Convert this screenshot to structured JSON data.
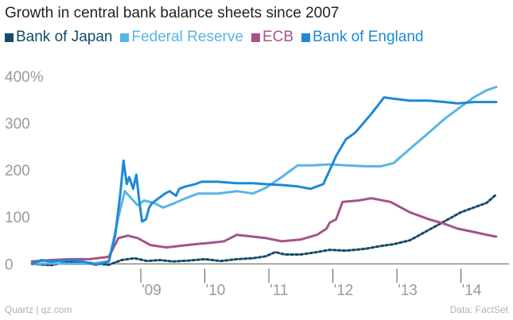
{
  "chart_data": {
    "type": "line",
    "title": "Growth in central bank balance sheets since 2007",
    "xlabel": "",
    "ylabel": "",
    "ylim": [
      -8,
      400
    ],
    "xlim": [
      2007.0,
      2014.75
    ],
    "y_ticks": [
      {
        "value": 400,
        "label": "400%"
      },
      {
        "value": 300,
        "label": "300"
      },
      {
        "value": 200,
        "label": "200"
      },
      {
        "value": 100,
        "label": "100"
      },
      {
        "value": 0,
        "label": "0"
      }
    ],
    "x_ticks": [
      {
        "value": 2009,
        "label": "'09"
      },
      {
        "value": 2010,
        "label": "'10"
      },
      {
        "value": 2011,
        "label": "'11"
      },
      {
        "value": 2012,
        "label": "'12"
      },
      {
        "value": 2013,
        "label": "'13"
      },
      {
        "value": 2014,
        "label": "'14"
      }
    ],
    "legend_position": "top",
    "grid": "baseline only",
    "series": [
      {
        "name": "Bank of Japan",
        "color": "#174a6a",
        "dashed": true,
        "points": [
          [
            2007.3,
            0
          ],
          [
            2007.6,
            -3
          ],
          [
            2007.9,
            5
          ],
          [
            2008.2,
            2
          ],
          [
            2008.5,
            -2
          ],
          [
            2008.7,
            8
          ],
          [
            2008.9,
            12
          ],
          [
            2009.1,
            6
          ],
          [
            2009.3,
            8
          ],
          [
            2009.5,
            5
          ],
          [
            2009.75,
            7
          ],
          [
            2010.0,
            10
          ],
          [
            2010.25,
            6
          ],
          [
            2010.5,
            10
          ],
          [
            2010.75,
            12
          ],
          [
            2010.95,
            16
          ],
          [
            2011.1,
            25
          ],
          [
            2011.25,
            20
          ],
          [
            2011.5,
            20
          ],
          [
            2011.75,
            25
          ],
          [
            2011.95,
            30
          ],
          [
            2012.2,
            28
          ],
          [
            2012.5,
            32
          ],
          [
            2012.75,
            38
          ],
          [
            2012.95,
            42
          ],
          [
            2013.2,
            50
          ],
          [
            2013.4,
            65
          ],
          [
            2013.6,
            80
          ],
          [
            2013.8,
            95
          ],
          [
            2014.0,
            110
          ],
          [
            2014.2,
            120
          ],
          [
            2014.4,
            130
          ],
          [
            2014.55,
            148
          ]
        ]
      },
      {
        "name": "Federal Reserve",
        "color": "#5ab4e5",
        "dashed": false,
        "points": [
          [
            2007.3,
            0
          ],
          [
            2007.6,
            1
          ],
          [
            2007.9,
            0
          ],
          [
            2008.2,
            0
          ],
          [
            2008.5,
            5
          ],
          [
            2008.65,
            100
          ],
          [
            2008.75,
            155
          ],
          [
            2008.85,
            140
          ],
          [
            2008.95,
            125
          ],
          [
            2009.05,
            135
          ],
          [
            2009.2,
            130
          ],
          [
            2009.35,
            120
          ],
          [
            2009.5,
            128
          ],
          [
            2009.7,
            140
          ],
          [
            2009.9,
            150
          ],
          [
            2010.2,
            150
          ],
          [
            2010.5,
            155
          ],
          [
            2010.75,
            150
          ],
          [
            2010.95,
            162
          ],
          [
            2011.2,
            185
          ],
          [
            2011.45,
            210
          ],
          [
            2011.7,
            210
          ],
          [
            2011.95,
            212
          ],
          [
            2012.2,
            210
          ],
          [
            2012.5,
            208
          ],
          [
            2012.75,
            208
          ],
          [
            2012.95,
            215
          ],
          [
            2013.2,
            245
          ],
          [
            2013.5,
            280
          ],
          [
            2013.75,
            310
          ],
          [
            2013.95,
            330
          ],
          [
            2014.2,
            355
          ],
          [
            2014.4,
            370
          ],
          [
            2014.55,
            377
          ]
        ]
      },
      {
        "name": "ECB",
        "color": "#a6538a",
        "dashed": false,
        "points": [
          [
            2007.3,
            5
          ],
          [
            2007.6,
            8
          ],
          [
            2007.9,
            10
          ],
          [
            2008.2,
            10
          ],
          [
            2008.5,
            15
          ],
          [
            2008.65,
            55
          ],
          [
            2008.8,
            60
          ],
          [
            2008.95,
            55
          ],
          [
            2009.15,
            40
          ],
          [
            2009.4,
            35
          ],
          [
            2009.6,
            38
          ],
          [
            2009.85,
            42
          ],
          [
            2010.1,
            45
          ],
          [
            2010.3,
            48
          ],
          [
            2010.5,
            62
          ],
          [
            2010.75,
            58
          ],
          [
            2010.95,
            55
          ],
          [
            2011.2,
            48
          ],
          [
            2011.5,
            52
          ],
          [
            2011.75,
            62
          ],
          [
            2011.9,
            75
          ],
          [
            2011.95,
            88
          ],
          [
            2012.05,
            95
          ],
          [
            2012.15,
            132
          ],
          [
            2012.4,
            135
          ],
          [
            2012.6,
            140
          ],
          [
            2012.9,
            132
          ],
          [
            2013.2,
            110
          ],
          [
            2013.5,
            95
          ],
          [
            2013.75,
            85
          ],
          [
            2013.95,
            75
          ],
          [
            2014.2,
            68
          ],
          [
            2014.4,
            62
          ],
          [
            2014.55,
            58
          ]
        ]
      },
      {
        "name": "Bank of England",
        "color": "#1e89d4",
        "dashed": false,
        "points": [
          [
            2007.3,
            0
          ],
          [
            2007.45,
            8
          ],
          [
            2007.6,
            5
          ],
          [
            2007.9,
            8
          ],
          [
            2008.1,
            5
          ],
          [
            2008.3,
            -2
          ],
          [
            2008.5,
            5
          ],
          [
            2008.6,
            60
          ],
          [
            2008.68,
            150
          ],
          [
            2008.73,
            220
          ],
          [
            2008.78,
            170
          ],
          [
            2008.82,
            185
          ],
          [
            2008.88,
            160
          ],
          [
            2008.93,
            190
          ],
          [
            2008.98,
            130
          ],
          [
            2009.02,
            90
          ],
          [
            2009.08,
            95
          ],
          [
            2009.13,
            120
          ],
          [
            2009.18,
            130
          ],
          [
            2009.28,
            140
          ],
          [
            2009.38,
            150
          ],
          [
            2009.45,
            155
          ],
          [
            2009.55,
            145
          ],
          [
            2009.6,
            160
          ],
          [
            2009.7,
            165
          ],
          [
            2009.85,
            170
          ],
          [
            2009.95,
            175
          ],
          [
            2010.2,
            175
          ],
          [
            2010.5,
            172
          ],
          [
            2010.75,
            172
          ],
          [
            2010.95,
            170
          ],
          [
            2011.2,
            168
          ],
          [
            2011.45,
            165
          ],
          [
            2011.65,
            160
          ],
          [
            2011.85,
            170
          ],
          [
            2011.95,
            200
          ],
          [
            2012.05,
            230
          ],
          [
            2012.2,
            265
          ],
          [
            2012.35,
            280
          ],
          [
            2012.6,
            320
          ],
          [
            2012.8,
            355
          ],
          [
            2012.95,
            352
          ],
          [
            2013.2,
            348
          ],
          [
            2013.5,
            348
          ],
          [
            2013.75,
            345
          ],
          [
            2013.95,
            342
          ],
          [
            2014.2,
            345
          ],
          [
            2014.4,
            345
          ],
          [
            2014.55,
            345
          ]
        ]
      }
    ]
  },
  "footer": {
    "source_left": "Quartz | qz.com",
    "source_right": "Data: FactSet"
  }
}
